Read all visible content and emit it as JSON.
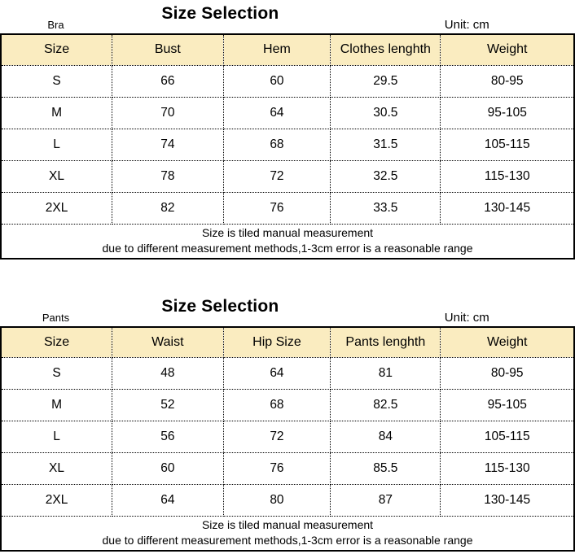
{
  "colors": {
    "header_fill": "#FAECC0",
    "border": "#000000",
    "text": "#000000",
    "background": "#FFFFFF"
  },
  "tables": [
    {
      "category": "Bra",
      "title": "Size Selection",
      "unit": "Unit: cm",
      "columns": [
        "Size",
        "Bust",
        "Hem",
        "Clothes lenghth",
        "Weight"
      ],
      "rows": [
        [
          "S",
          "66",
          "60",
          "29.5",
          "80-95"
        ],
        [
          "M",
          "70",
          "64",
          "30.5",
          "95-105"
        ],
        [
          "L",
          "74",
          "68",
          "31.5",
          "105-115"
        ],
        [
          "XL",
          "78",
          "72",
          "32.5",
          "115-130"
        ],
        [
          "2XL",
          "82",
          "76",
          "33.5",
          "130-145"
        ]
      ],
      "notes": [
        "Size is tiled manual measurement",
        "due to different measurement methods,1-3cm error is a reasonable range"
      ]
    },
    {
      "category": "Pants",
      "title": "Size Selection",
      "unit": "Unit: cm",
      "columns": [
        "Size",
        "Waist",
        "Hip Size",
        "Pants lenghth",
        "Weight"
      ],
      "rows": [
        [
          "S",
          "48",
          "64",
          "81",
          "80-95"
        ],
        [
          "M",
          "52",
          "68",
          "82.5",
          "95-105"
        ],
        [
          "L",
          "56",
          "72",
          "84",
          "105-115"
        ],
        [
          "XL",
          "60",
          "76",
          "85.5",
          "115-130"
        ],
        [
          "2XL",
          "64",
          "80",
          "87",
          "130-145"
        ]
      ],
      "notes": [
        "Size is tiled manual measurement",
        "due to different measurement methods,1-3cm error is a reasonable range"
      ]
    }
  ]
}
